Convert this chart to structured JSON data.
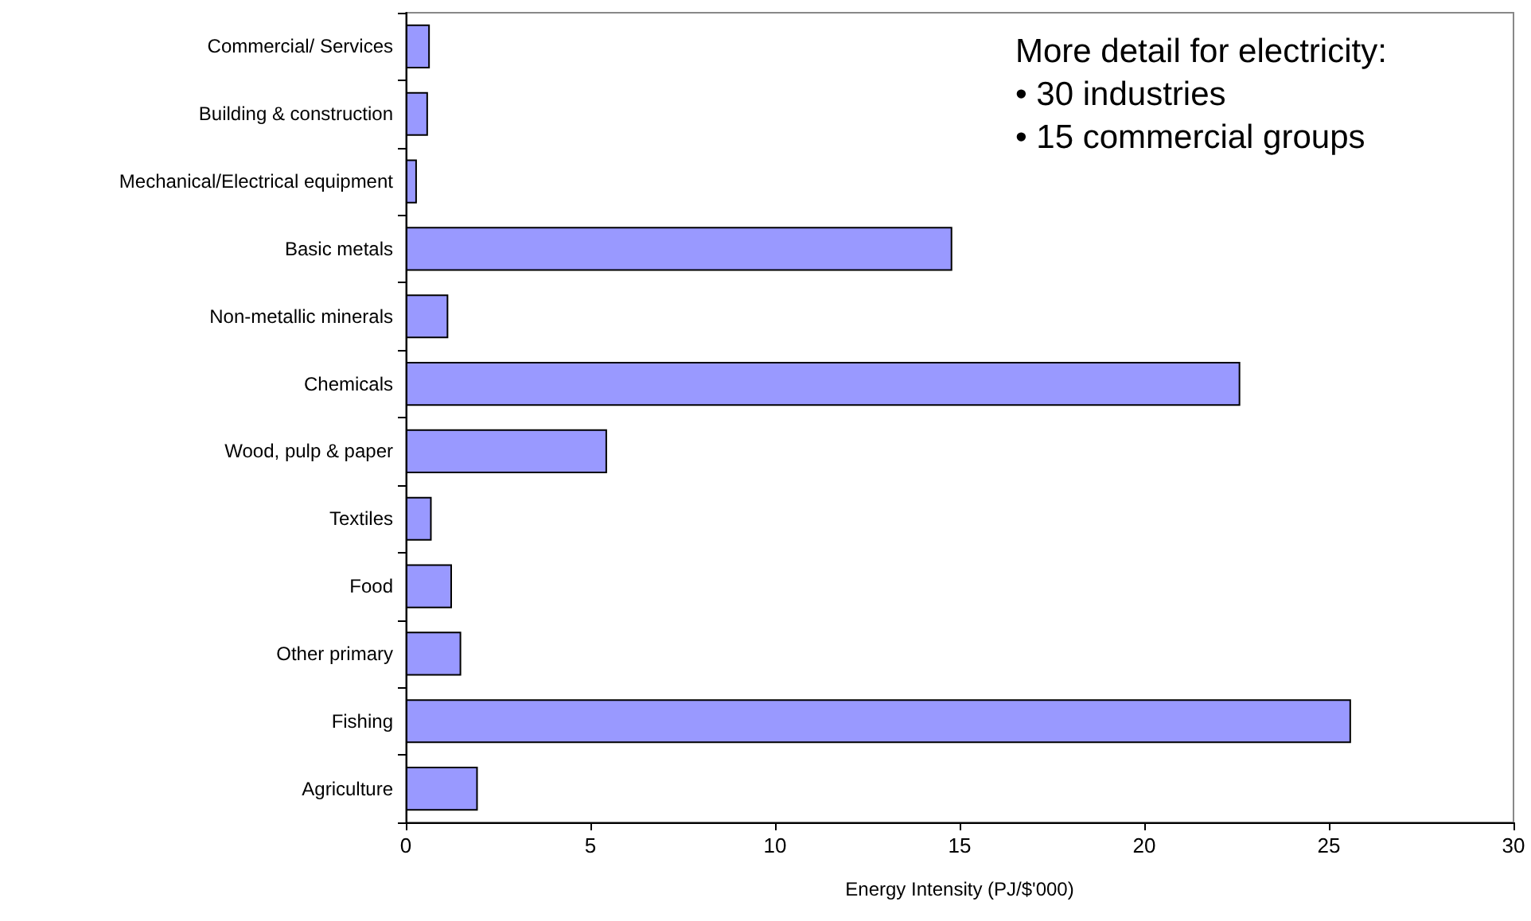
{
  "chart_data": {
    "type": "bar",
    "orientation": "horizontal",
    "xlabel": "Energy Intensity (PJ/$'000)",
    "categories": [
      "Commercial/ Services",
      "Building & construction",
      "Mechanical/Electrical equipment",
      "Basic metals",
      "Non-metallic minerals",
      "Chemicals",
      "Wood, pulp & paper",
      "Textiles",
      "Food",
      "Other primary",
      "Fishing",
      "Agriculture"
    ],
    "values": [
      0.65,
      0.6,
      0.3,
      14.8,
      1.15,
      22.6,
      5.45,
      0.7,
      1.25,
      1.5,
      25.6,
      1.95
    ],
    "color": "#9999ff",
    "xlim": [
      0,
      30
    ],
    "xticks": [
      0,
      5,
      10,
      15,
      20,
      25,
      30
    ],
    "grid": false,
    "annotations": [
      "More detail for electricity:",
      "• 30 industries",
      "• 15 commercial groups"
    ]
  }
}
